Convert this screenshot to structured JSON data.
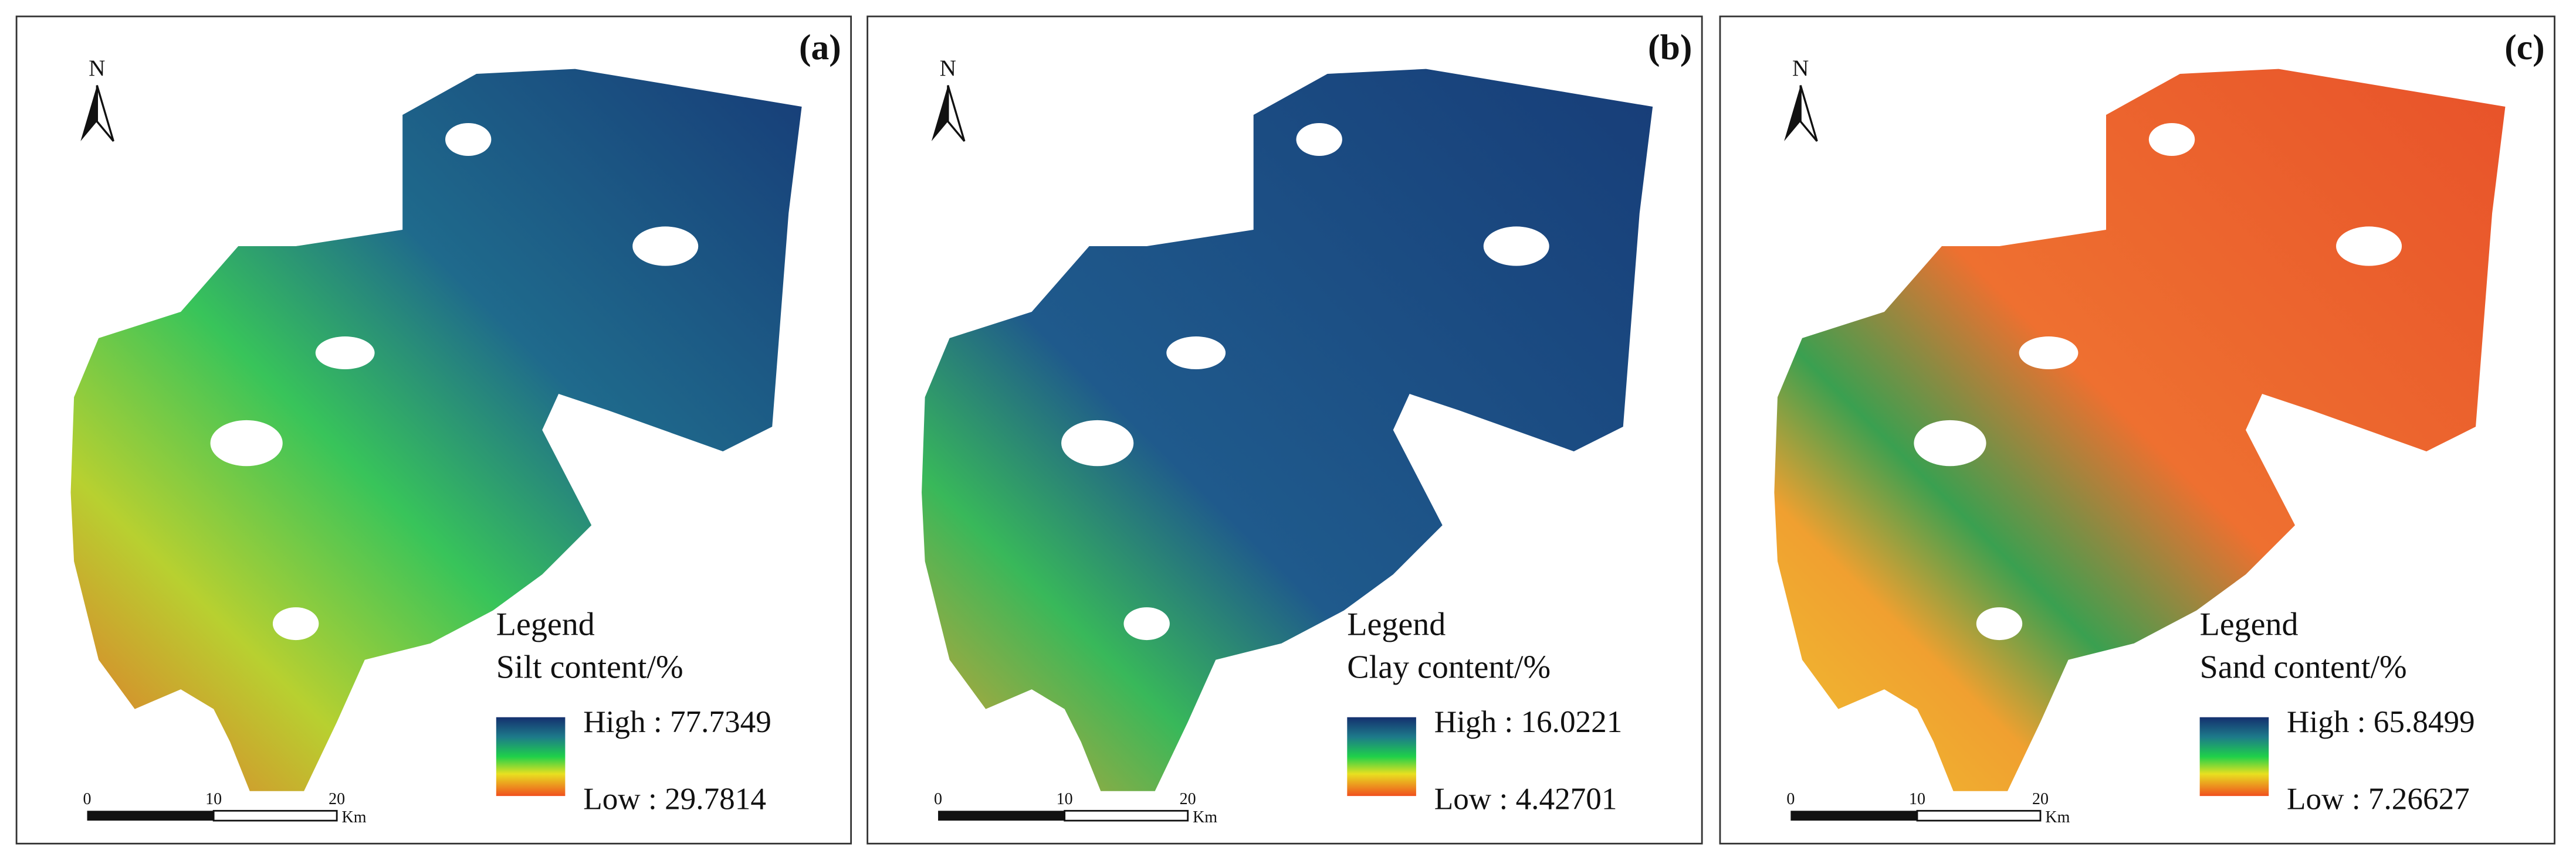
{
  "panels": [
    {
      "label": "(a)",
      "north": "N",
      "legend_heading": "Legend",
      "legend_title": "Silt content/%",
      "high": "High : 77.7349",
      "low": "Low : 29.7814",
      "scale_labels": [
        "0",
        "10",
        "20"
      ],
      "scale_unit": "Km"
    },
    {
      "label": "(b)",
      "north": "N",
      "legend_heading": "Legend",
      "legend_title": "Clay content/%",
      "high": "High : 16.0221",
      "low": "Low : 4.42701",
      "scale_labels": [
        "0",
        "10",
        "20"
      ],
      "scale_unit": "Km"
    },
    {
      "label": "(c)",
      "north": "N",
      "legend_heading": "Legend",
      "legend_title": "Sand content/%",
      "high": "High : 65.8499",
      "low": "Low : 7.26627",
      "scale_labels": [
        "0",
        "10",
        "20"
      ],
      "scale_unit": "Km"
    }
  ]
}
